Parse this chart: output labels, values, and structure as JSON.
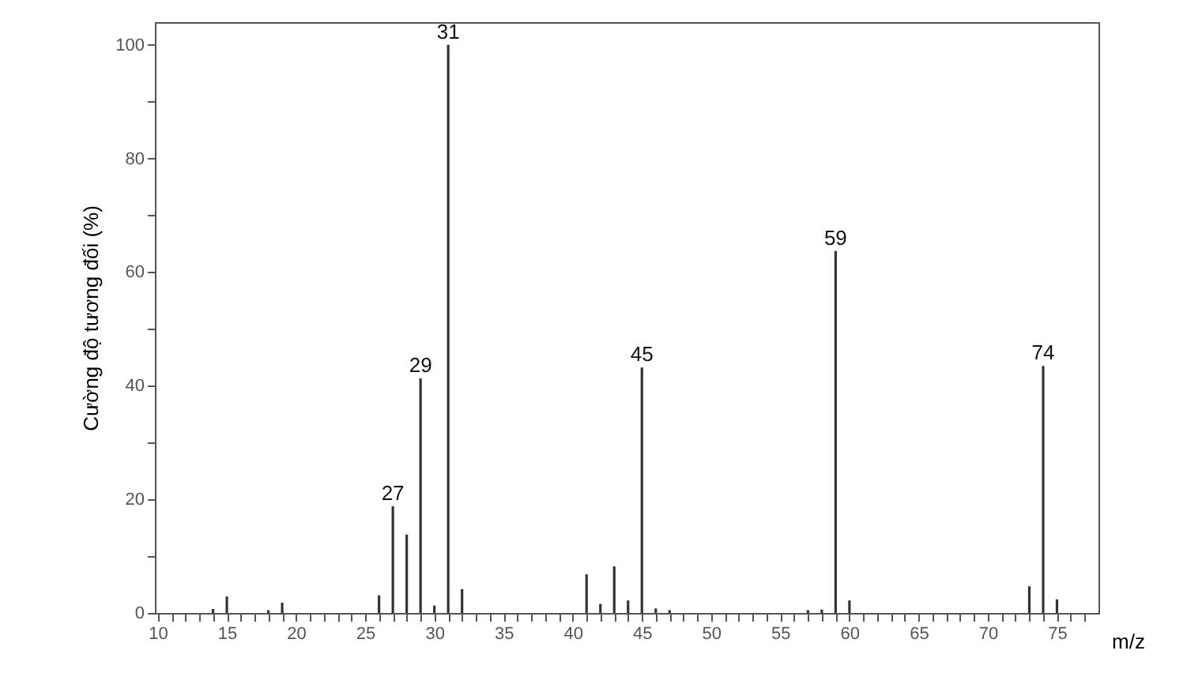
{
  "chart_data": {
    "type": "bar",
    "xlabel": "m/z",
    "ylabel": "Cường độ tương đối (%)",
    "x": [
      14,
      15,
      18,
      19,
      26,
      27,
      28,
      29,
      30,
      31,
      32,
      41,
      42,
      43,
      44,
      45,
      46,
      47,
      57,
      58,
      59,
      60,
      73,
      74,
      75
    ],
    "series": [
      {
        "color": "#333333",
        "values": [
          0.7,
          2.9,
          0.5,
          1.8,
          3.1,
          18.8,
          13.8,
          41.3,
          1.3,
          100,
          4.2,
          6.8,
          1.6,
          8.2,
          2.2,
          43.2,
          0.8,
          0.5,
          0.5,
          0.6,
          63.7,
          2.2,
          4.7,
          43.5,
          2.4
        ]
      }
    ],
    "xlim": [
      9.8,
      78
    ],
    "ylim": [
      0,
      104
    ],
    "xticks": [
      10,
      {
        "value": 11,
        "label": null
      },
      {
        "value": 12,
        "label": null
      },
      {
        "value": 13,
        "label": null
      },
      {
        "value": 14,
        "label": null
      },
      15,
      {
        "value": 16,
        "label": null
      },
      {
        "value": 17,
        "label": null
      },
      {
        "value": 18,
        "label": null
      },
      {
        "value": 19,
        "label": null
      },
      20,
      {
        "value": 21,
        "label": null
      },
      {
        "value": 22,
        "label": null
      },
      {
        "value": 23,
        "label": null
      },
      {
        "value": 24,
        "label": null
      },
      25,
      {
        "value": 26,
        "label": null
      },
      {
        "value": 27,
        "label": null
      },
      {
        "value": 28,
        "label": null
      },
      {
        "value": 29,
        "label": null
      },
      30,
      {
        "value": 31,
        "label": null
      },
      {
        "value": 32,
        "label": null
      },
      {
        "value": 33,
        "label": null
      },
      {
        "value": 34,
        "label": null
      },
      35,
      {
        "value": 36,
        "label": null
      },
      {
        "value": 37,
        "label": null
      },
      {
        "value": 38,
        "label": null
      },
      {
        "value": 39,
        "label": null
      },
      40,
      {
        "value": 41,
        "label": null
      },
      {
        "value": 42,
        "label": null
      },
      {
        "value": 43,
        "label": null
      },
      {
        "value": 44,
        "label": null
      },
      45,
      {
        "value": 46,
        "label": null
      },
      {
        "value": 47,
        "label": null
      },
      {
        "value": 48,
        "label": null
      },
      {
        "value": 49,
        "label": null
      },
      50,
      {
        "value": 51,
        "label": null
      },
      {
        "value": 52,
        "label": null
      },
      {
        "value": 53,
        "label": null
      },
      {
        "value": 54,
        "label": null
      },
      55,
      {
        "value": 56,
        "label": null
      },
      {
        "value": 57,
        "label": null
      },
      {
        "value": 58,
        "label": null
      },
      {
        "value": 59,
        "label": null
      },
      60,
      {
        "value": 61,
        "label": null
      },
      {
        "value": 62,
        "label": null
      },
      {
        "value": 63,
        "label": null
      },
      {
        "value": 64,
        "label": null
      },
      65,
      {
        "value": 66,
        "label": null
      },
      {
        "value": 67,
        "label": null
      },
      {
        "value": 68,
        "label": null
      },
      {
        "value": 69,
        "label": null
      },
      70,
      {
        "value": 71,
        "label": null
      },
      {
        "value": 72,
        "label": null
      },
      {
        "value": 73,
        "label": null
      },
      {
        "value": 74,
        "label": null
      },
      75,
      {
        "value": 76,
        "label": null
      },
      {
        "value": 77,
        "label": null
      }
    ],
    "yticks": [
      0,
      {
        "value": 10,
        "label": null
      },
      20,
      {
        "value": 30,
        "label": null
      },
      40,
      {
        "value": 50,
        "label": null
      },
      60,
      {
        "value": 70,
        "label": null
      },
      80,
      {
        "value": 90,
        "label": null
      },
      100
    ],
    "annotations": [
      {
        "text": "27",
        "x": 27,
        "y": 18.8
      },
      {
        "text": "29",
        "x": 29,
        "y": 41.3
      },
      {
        "text": "31",
        "x": 31,
        "y": 100
      },
      {
        "text": "45",
        "x": 45,
        "y": 43.2
      },
      {
        "text": "59",
        "x": 59,
        "y": 63.7
      },
      {
        "text": "74",
        "x": 74,
        "y": 43.5
      }
    ],
    "grid": false
  }
}
